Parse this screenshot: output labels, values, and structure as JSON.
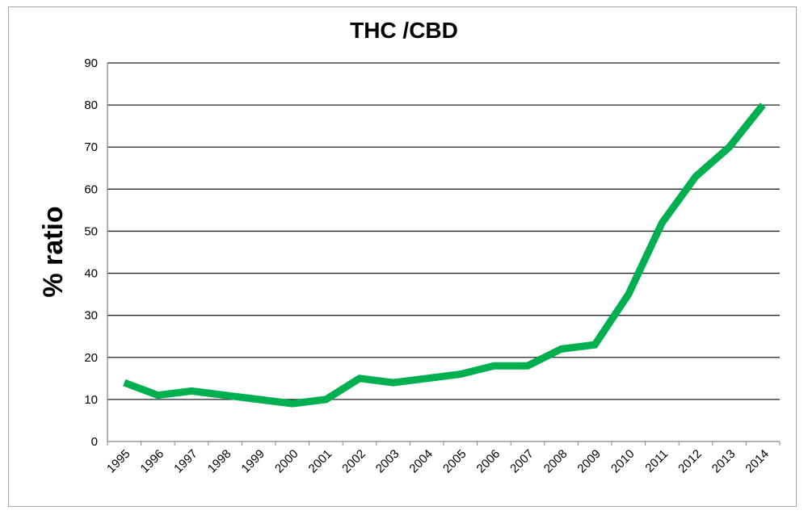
{
  "chart_data": {
    "type": "line",
    "title": "THC /CBD",
    "xlabel": "",
    "ylabel": "% ratio",
    "ylim": [
      0,
      90
    ],
    "yticks": [
      0,
      10,
      20,
      30,
      40,
      50,
      60,
      70,
      80,
      90
    ],
    "grid": true,
    "legend": "none",
    "categories": [
      "1995",
      "1996",
      "1997",
      "1998",
      "1999",
      "2000",
      "2001",
      "2002",
      "2003",
      "2004",
      "2005",
      "2006",
      "2007",
      "2008",
      "2009",
      "2010",
      "2011",
      "2012",
      "2013",
      "2014"
    ],
    "series": [
      {
        "values": [
          14,
          11,
          12,
          11,
          10,
          9,
          10,
          15,
          14,
          15,
          16,
          18,
          18,
          22,
          23,
          35,
          52,
          63,
          70,
          80
        ],
        "color": "#00b050"
      }
    ]
  }
}
